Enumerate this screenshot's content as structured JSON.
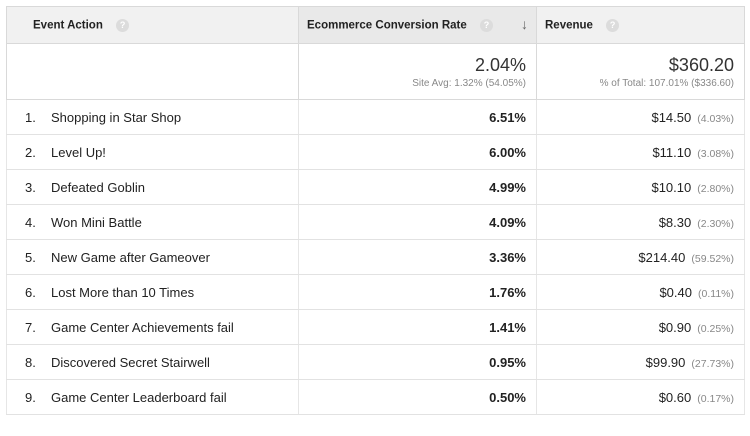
{
  "header": {
    "event_action": "Event Action",
    "conversion_rate": "Ecommerce Conversion Rate",
    "revenue": "Revenue",
    "help": "?",
    "sort_arrow": "↓"
  },
  "summary": {
    "conversion_value": "2.04%",
    "conversion_note": "Site Avg: 1.32% (54.05%)",
    "revenue_value": "$360.20",
    "revenue_note": "% of Total: 107.01% ($336.60)"
  },
  "rows": [
    {
      "index": "1.",
      "action": "Shopping in Star Shop",
      "rate": "6.51%",
      "revenue": "$14.50",
      "share": "(4.03%)"
    },
    {
      "index": "2.",
      "action": "Level Up!",
      "rate": "6.00%",
      "revenue": "$11.10",
      "share": "(3.08%)"
    },
    {
      "index": "3.",
      "action": "Defeated Goblin",
      "rate": "4.99%",
      "revenue": "$10.10",
      "share": "(2.80%)"
    },
    {
      "index": "4.",
      "action": "Won Mini Battle",
      "rate": "4.09%",
      "revenue": "$8.30",
      "share": "(2.30%)"
    },
    {
      "index": "5.",
      "action": "New Game after Gameover",
      "rate": "3.36%",
      "revenue": "$214.40",
      "share": "(59.52%)"
    },
    {
      "index": "6.",
      "action": "Lost More than 10 Times",
      "rate": "1.76%",
      "revenue": "$0.40",
      "share": "(0.11%)"
    },
    {
      "index": "7.",
      "action": "Game Center Achievements fail",
      "rate": "1.41%",
      "revenue": "$0.90",
      "share": "(0.25%)"
    },
    {
      "index": "8.",
      "action": "Discovered Secret Stairwell",
      "rate": "0.95%",
      "revenue": "$99.90",
      "share": "(27.73%)"
    },
    {
      "index": "9.",
      "action": "Game Center Leaderboard fail",
      "rate": "0.50%",
      "revenue": "$0.60",
      "share": "(0.17%)"
    }
  ]
}
